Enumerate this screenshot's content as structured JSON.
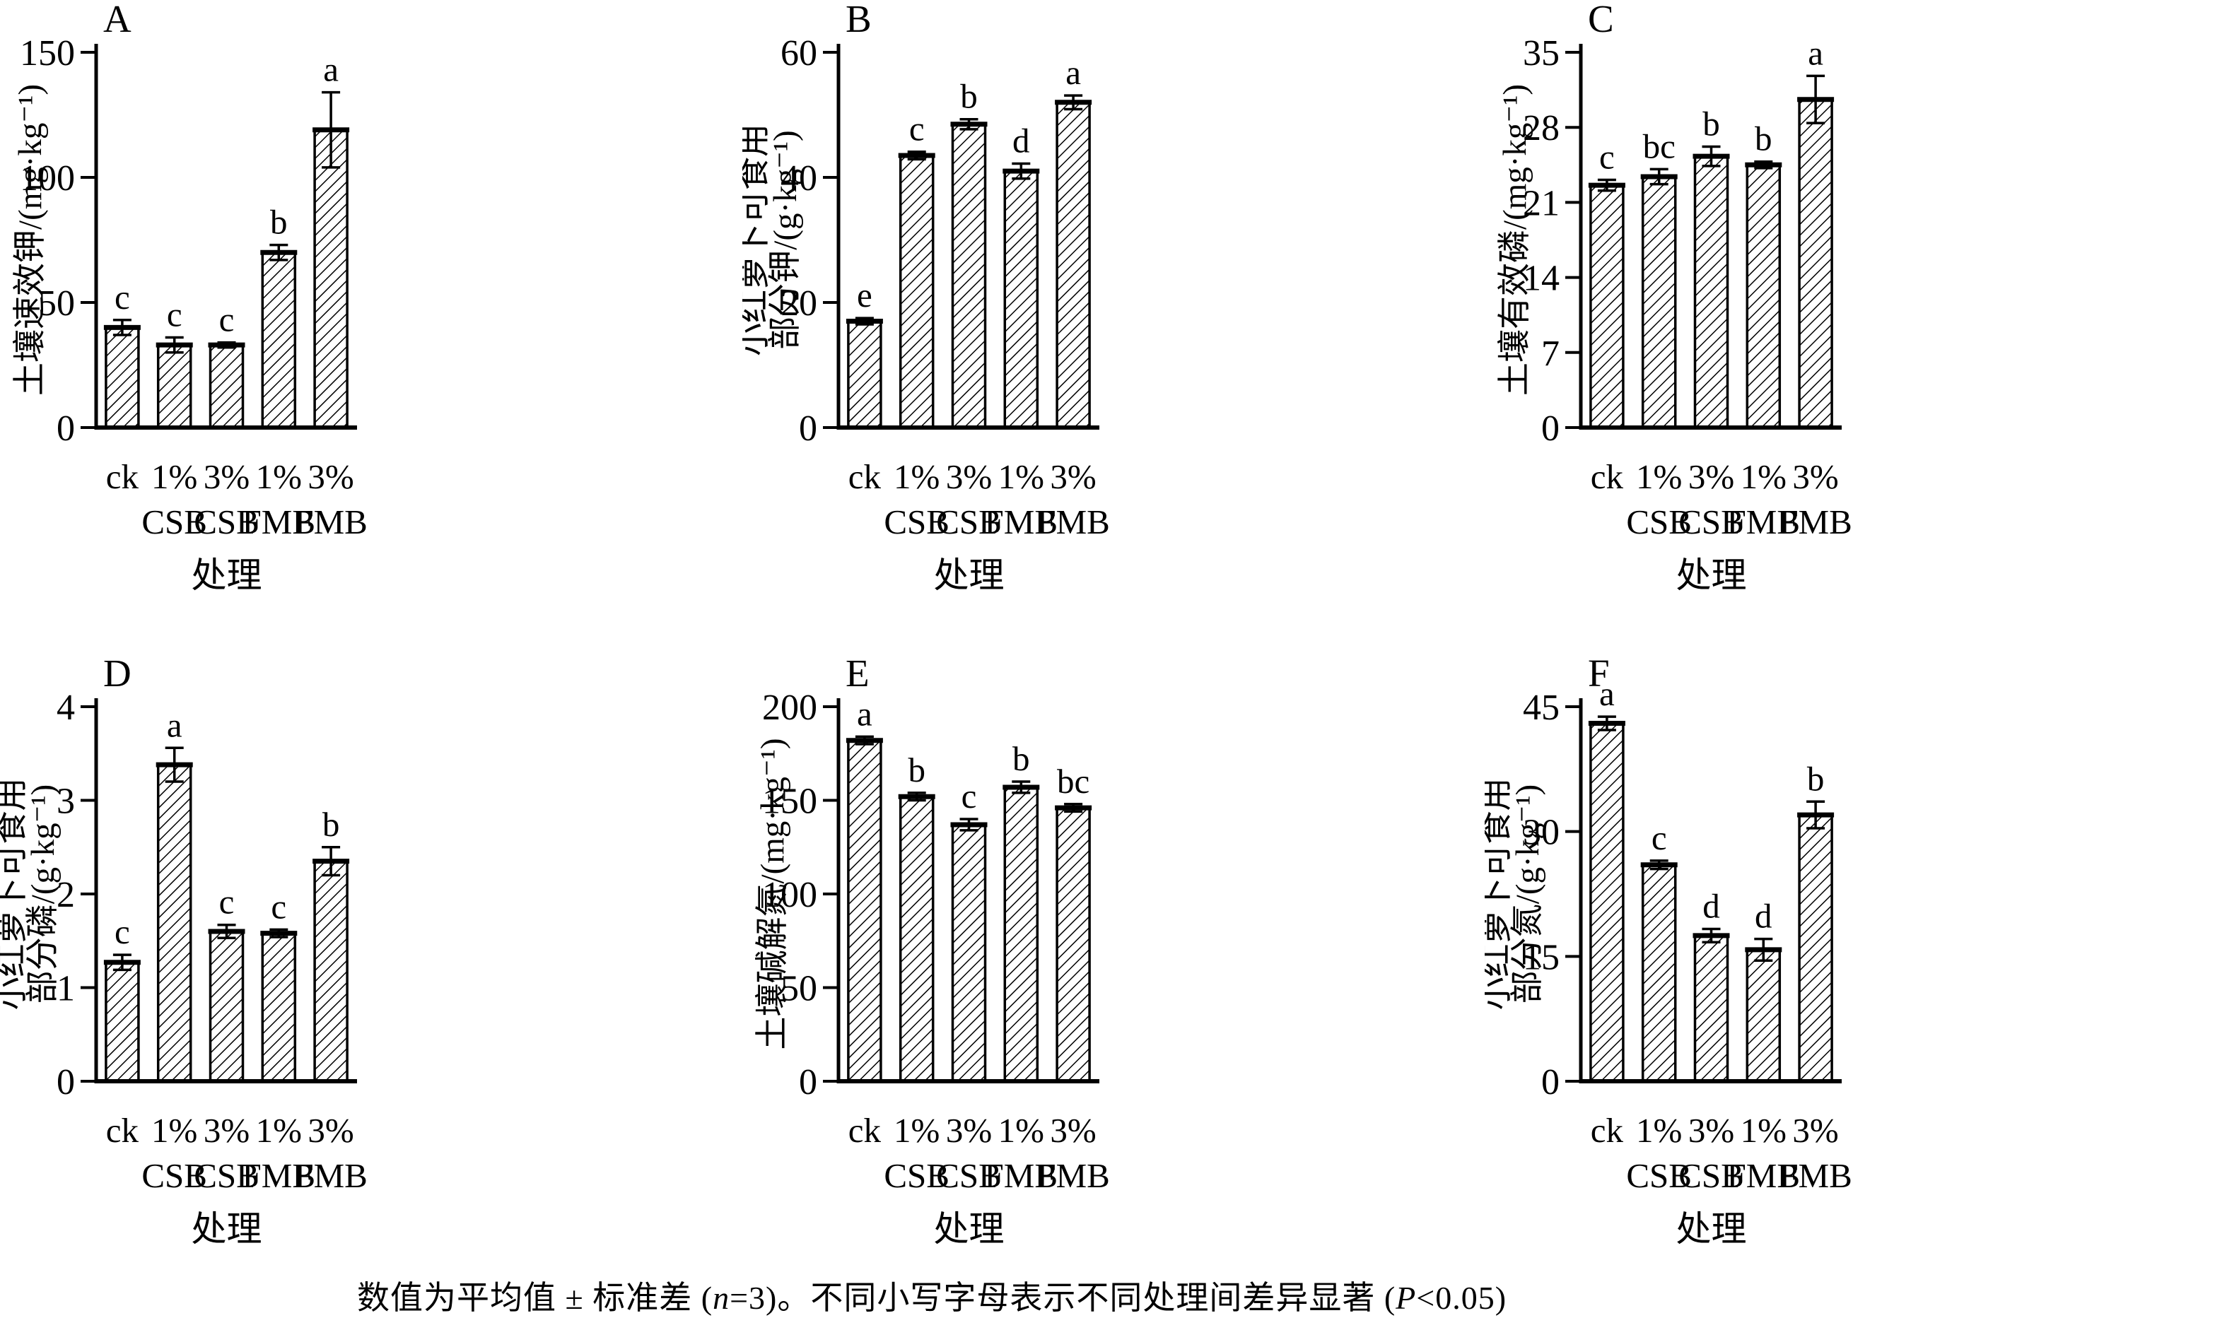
{
  "figure": {
    "caption": {
      "pre": "数值为平均值 ± 标准差 (",
      "n_symbol": "n",
      "mid": "=3)。不同小写字母表示不同处理间差异显著 (",
      "p_symbol": "P",
      "post": "<0.05)"
    }
  },
  "chart_data": [
    {
      "type": "bar",
      "panel_letter": "A",
      "ylabel_lines": [
        "土壤速效钾/(mg·kg⁻¹)"
      ],
      "xlabel": "处理",
      "categories": [
        "ck",
        "1% CSB",
        "3% CSB",
        "1% FMB",
        "3% FMB"
      ],
      "values": [
        40,
        33,
        33,
        70,
        119
      ],
      "errors": [
        3,
        3,
        1,
        3,
        15
      ],
      "sig_letters": [
        "c",
        "c",
        "c",
        "b",
        "a"
      ],
      "yticks": [
        0,
        50,
        100,
        150
      ],
      "ylim": [
        0,
        150
      ],
      "grid": "off",
      "bar_fill": "diagonal-hatch",
      "color": "#000000"
    },
    {
      "type": "bar",
      "panel_letter": "B",
      "ylabel_lines": [
        "小红萝卜可食用",
        "部分钾/(g·kg⁻¹)"
      ],
      "xlabel": "处理",
      "categories": [
        "ck",
        "1% CSB",
        "3% CSB",
        "1% FMB",
        "3% FMB"
      ],
      "values": [
        17,
        43.5,
        48.5,
        41,
        52
      ],
      "errors": [
        0.5,
        0.6,
        0.8,
        1.2,
        1.1
      ],
      "sig_letters": [
        "e",
        "c",
        "b",
        "d",
        "a"
      ],
      "yticks": [
        0,
        20,
        40,
        60
      ],
      "ylim": [
        0,
        60
      ],
      "grid": "off",
      "bar_fill": "diagonal-hatch",
      "color": "#000000"
    },
    {
      "type": "bar",
      "panel_letter": "C",
      "ylabel_lines": [
        "土壤有效磷/(mg·kg⁻¹)"
      ],
      "xlabel": "处理",
      "categories": [
        "ck",
        "1% CSB",
        "3% CSB",
        "1% FMB",
        "3% FMB"
      ],
      "values": [
        22.6,
        23.4,
        25.3,
        24.5,
        30.6
      ],
      "errors": [
        0.5,
        0.7,
        0.9,
        0.3,
        2.2
      ],
      "sig_letters": [
        "c",
        "bc",
        "b",
        "b",
        "a"
      ],
      "yticks": [
        0,
        7,
        14,
        21,
        28,
        35
      ],
      "ylim": [
        0,
        35
      ],
      "grid": "off",
      "bar_fill": "diagonal-hatch",
      "color": "#000000"
    },
    {
      "type": "bar",
      "panel_letter": "D",
      "ylabel_lines": [
        "小红萝卜可食用",
        "部分磷/(g·kg⁻¹)"
      ],
      "xlabel": "处理",
      "categories": [
        "ck",
        "1% CSB",
        "3% CSB",
        "1% FMB",
        "3% FMB"
      ],
      "values": [
        1.27,
        3.38,
        1.6,
        1.58,
        2.35
      ],
      "errors": [
        0.08,
        0.18,
        0.07,
        0.04,
        0.15
      ],
      "sig_letters": [
        "c",
        "a",
        "c",
        "c",
        "b"
      ],
      "yticks": [
        0,
        1,
        2,
        3,
        4
      ],
      "ylim": [
        0,
        4
      ],
      "grid": "off",
      "bar_fill": "diagonal-hatch",
      "color": "#000000"
    },
    {
      "type": "bar",
      "panel_letter": "E",
      "ylabel_lines": [
        "土壤碱解氮/(mg·kg⁻¹)"
      ],
      "xlabel": "处理",
      "categories": [
        "ck",
        "1% CSB",
        "3% CSB",
        "1% FMB",
        "3% FMB"
      ],
      "values": [
        182,
        152,
        137,
        157,
        146
      ],
      "errors": [
        2,
        2,
        3,
        3,
        2
      ],
      "sig_letters": [
        "a",
        "b",
        "c",
        "b",
        "bc"
      ],
      "yticks": [
        0,
        50,
        100,
        150,
        200
      ],
      "ylim": [
        0,
        200
      ],
      "grid": "off",
      "bar_fill": "diagonal-hatch",
      "color": "#000000"
    },
    {
      "type": "bar",
      "panel_letter": "F",
      "ylabel_lines": [
        "小红萝卜可食用",
        "部分氮/(g·kg⁻¹)"
      ],
      "xlabel": "处理",
      "categories": [
        "ck",
        "1% CSB",
        "3% CSB",
        "1% FMB",
        "3% FMB"
      ],
      "values": [
        43,
        26,
        17.5,
        15.8,
        32
      ],
      "errors": [
        0.8,
        0.5,
        0.8,
        1.3,
        1.6
      ],
      "sig_letters": [
        "a",
        "c",
        "d",
        "d",
        "b"
      ],
      "yticks": [
        0,
        15,
        30,
        45
      ],
      "ylim": [
        0,
        45
      ],
      "grid": "off",
      "bar_fill": "diagonal-hatch",
      "color": "#000000"
    }
  ]
}
